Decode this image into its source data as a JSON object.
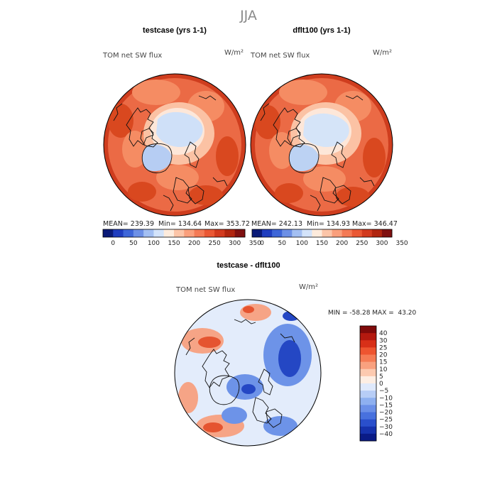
{
  "page_title": "JJA",
  "top_left": {
    "title": "testcase (yrs 1-1)",
    "variable": "TOM net SW flux",
    "units": "W/m²",
    "stats": {
      "mean": "MEAN= 239.39",
      "min": "Min= 134.64",
      "max": "Max= 353.72"
    }
  },
  "top_right": {
    "title": "dflt100 (yrs 1-1)",
    "variable": "TOM net SW flux",
    "units": "W/m²",
    "stats": {
      "mean": "MEAN= 242.13",
      "min": "Min= 134.93",
      "max": "Max= 346.47"
    }
  },
  "bottom": {
    "title": "testcase - dflt100",
    "variable": "TOM net SW flux",
    "units": "W/m²",
    "stats": "MIN = -58.28 MAX =  43.20"
  },
  "chart_data": [
    {
      "type": "heatmap",
      "projection": "north polar stereographic",
      "title": "testcase (yrs 1-1)",
      "variable": "TOM net SW flux",
      "units": "W/m2",
      "mean": 239.39,
      "min": 134.64,
      "max": 353.72,
      "colorbar_ticks": [
        "0",
        "50",
        "100",
        "150",
        "200",
        "250",
        "300",
        "350"
      ],
      "colorbar_colors": [
        "#0a1a78",
        "#1f3dbf",
        "#3e66d8",
        "#6d90e6",
        "#a3bff2",
        "#d3e3fa",
        "#fdebdc",
        "#fcc5a8",
        "#fa9f7c",
        "#f47a55",
        "#ea5834",
        "#d23a1e",
        "#b0250f",
        "#7f1010"
      ]
    },
    {
      "type": "heatmap",
      "projection": "north polar stereographic",
      "title": "dflt100 (yrs 1-1)",
      "variable": "TOM net SW flux",
      "units": "W/m2",
      "mean": 242.13,
      "min": 134.93,
      "max": 346.47,
      "colorbar_ticks": [
        "0",
        "50",
        "100",
        "150",
        "200",
        "250",
        "300",
        "350"
      ],
      "colorbar_colors": [
        "#0a1a78",
        "#1f3dbf",
        "#3e66d8",
        "#6d90e6",
        "#a3bff2",
        "#d3e3fa",
        "#fdebdc",
        "#fcc5a8",
        "#fa9f7c",
        "#f47a55",
        "#ea5834",
        "#d23a1e",
        "#b0250f",
        "#7f1010"
      ]
    },
    {
      "type": "heatmap",
      "projection": "north polar stereographic",
      "title": "testcase - dflt100",
      "variable": "TOM net SW flux",
      "units": "W/m2",
      "min": -58.28,
      "max": 43.2,
      "colorbar_ticks": [
        "40",
        "30",
        "25",
        "20",
        "15",
        "10",
        "5",
        "0",
        "−5",
        "−10",
        "−15",
        "−20",
        "−25",
        "−30",
        "−40"
      ],
      "colorbar_colors": [
        "#7f0a0a",
        "#b4190f",
        "#d83018",
        "#ee5530",
        "#f57c55",
        "#f9a17f",
        "#fccab0",
        "#fdeee3",
        "#dfe9fb",
        "#b7cdf6",
        "#8eb0f0",
        "#6b90e8",
        "#4871de",
        "#2a4fcc",
        "#1632ad",
        "#0a1b86"
      ]
    }
  ]
}
